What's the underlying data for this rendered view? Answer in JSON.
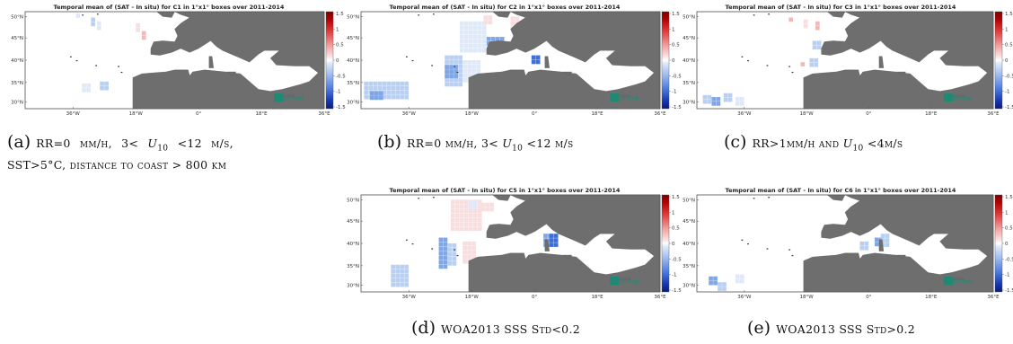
{
  "panels": [
    {
      "id": "a",
      "title": "Temporal mean of (SAT - In situ) for C1 in 1°x1° boxes over 2011-2014",
      "lat_ticks": [
        "50°N",
        "45°N",
        "40°N",
        "35°N",
        "30°N"
      ],
      "lon_ticks": [
        "36°W",
        "18°W",
        "0°",
        "18°E",
        "36°E"
      ],
      "cb_ticks": [
        "1.5",
        "1",
        "0.5",
        "0",
        "-0.5",
        "-1",
        "-1.5"
      ],
      "logo": "pi-mep",
      "caption_label": "(a)",
      "caption_lines": [
        "RR=0 mm/h, 3< U10 <12 m/s,",
        "SST>5°C, distance to coast > 800 km"
      ]
    },
    {
      "id": "b",
      "title": "Temporal mean of (SAT - In situ) for C2 in 1°x1° boxes over 2011-2014",
      "lat_ticks": [
        "50°N",
        "45°N",
        "40°N",
        "35°N",
        "30°N"
      ],
      "lon_ticks": [
        "36°W",
        "18°W",
        "0°",
        "18°E",
        "36°E"
      ],
      "cb_ticks": [
        "1.5",
        "1",
        "0.5",
        "0",
        "-0.5",
        "-1",
        "-1.5"
      ],
      "logo": "pi-mep",
      "caption_label": "(b)",
      "caption_lines": [
        "RR=0 mm/h, 3< U10 <12 m/s"
      ]
    },
    {
      "id": "c",
      "title": "Temporal mean of (SAT - In situ) for C3 in 1°x1° boxes over 2011-2014",
      "lat_ticks": [
        "50°N",
        "45°N",
        "40°N",
        "35°N",
        "30°N"
      ],
      "lon_ticks": [
        "36°W",
        "18°W",
        "0°",
        "18°E",
        "36°E"
      ],
      "cb_ticks": [
        "1.5",
        "1",
        "0.5",
        "0",
        "-0.5",
        "-1",
        "-1.5"
      ],
      "logo": "pi-mep",
      "caption_label": "(c)",
      "caption_lines": [
        "RR>1mm/h and U10 <4m/s"
      ]
    },
    {
      "id": "d",
      "title": "Temporal mean of (SAT - In situ) for C5 in 1°x1° boxes over 2011-2014",
      "lat_ticks": [
        "50°N",
        "45°N",
        "40°N",
        "35°N",
        "30°N"
      ],
      "lon_ticks": [
        "36°W",
        "18°W",
        "0°",
        "18°E",
        "36°E"
      ],
      "cb_ticks": [
        "1.5",
        "1",
        "0.5",
        "0",
        "-0.5",
        "-1",
        "-1.5"
      ],
      "logo": "pi-mep",
      "caption_label": "(d)",
      "caption_lines": [
        "WOA2013 SSS Std<0.2"
      ]
    },
    {
      "id": "e",
      "title": "Temporal mean of (SAT - In situ) for C6 in 1°x1° boxes over 2011-2014",
      "lat_ticks": [
        "50°N",
        "45°N",
        "40°N",
        "35°N",
        "30°N"
      ],
      "lon_ticks": [
        "36°W",
        "18°W",
        "0°",
        "18°E",
        "36°E"
      ],
      "cb_ticks": [
        "1.5",
        "1",
        "0.5",
        "0",
        "-0.5",
        "-1",
        "-1.5"
      ],
      "logo": "pi-mep",
      "caption_label": "(e)",
      "caption_lines": [
        "WOA2013 SSS Std>0.2"
      ]
    }
  ],
  "colors": {
    "land": "#6e6e6e",
    "ocean": "#ffffff",
    "logo_bg": "#1e8a74"
  }
}
